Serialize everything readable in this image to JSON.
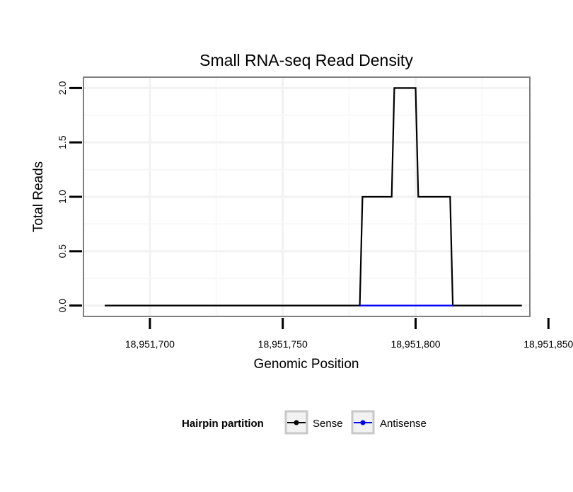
{
  "chart_data": {
    "type": "line",
    "title": "Small RNA-seq Read Density",
    "xlabel": "Genomic Position",
    "ylabel": "Total Reads",
    "xlim": [
      18951675,
      18951843
    ],
    "ylim": [
      -0.1,
      2.1
    ],
    "x_ticks": [
      18951700,
      18951750,
      18951800,
      18951850
    ],
    "x_tick_labels": [
      "18,951,700",
      "18,951,750",
      "18,951,800",
      "18,951,850"
    ],
    "y_ticks": [
      0.0,
      0.5,
      1.0,
      1.5,
      2.0
    ],
    "y_tick_labels": [
      "0.0",
      "0.5",
      "1.0",
      "1.5",
      "2.0"
    ],
    "grid": true,
    "legend": {
      "title": "Hairpin partition",
      "position": "bottom"
    },
    "series": [
      {
        "name": "Sense",
        "color": "#000000",
        "x": [
          18951683,
          18951779,
          18951780,
          18951791,
          18951792,
          18951800,
          18951801,
          18951813,
          18951814,
          18951840
        ],
        "y": [
          0,
          0,
          1,
          1,
          2,
          2,
          1,
          1,
          0,
          0
        ]
      },
      {
        "name": "Antisense",
        "color": "#0000ff",
        "x": [
          18951779,
          18951814
        ],
        "y": [
          0,
          0
        ]
      }
    ]
  }
}
